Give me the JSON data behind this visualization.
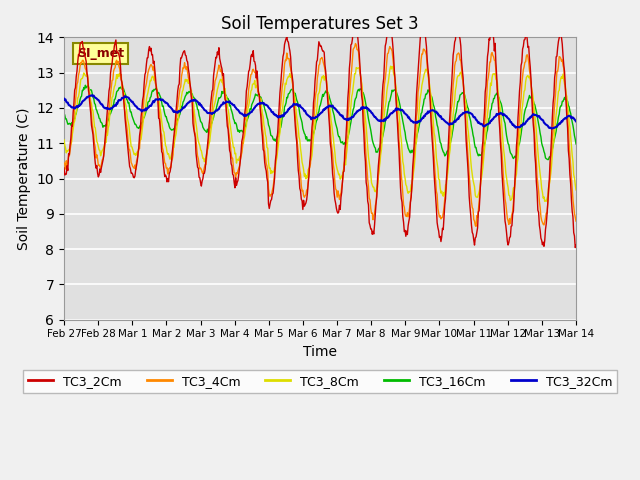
{
  "title": "Soil Temperatures Set 3",
  "xlabel": "Time",
  "ylabel": "Soil Temperature (C)",
  "ylim": [
    6.0,
    14.0
  ],
  "yticks": [
    6.0,
    7.0,
    8.0,
    9.0,
    10.0,
    11.0,
    12.0,
    13.0,
    14.0
  ],
  "x_tick_positions": [
    0,
    1,
    2,
    3,
    4,
    5,
    6,
    7,
    8,
    9,
    10,
    11,
    12,
    13,
    14,
    15
  ],
  "x_labels": [
    "Feb 27",
    "Feb 28",
    "Mar 1",
    "Mar 2",
    "Mar 3",
    "Mar 4",
    "Mar 5",
    "Mar 6",
    "Mar 7",
    "Mar 8",
    "Mar 9",
    "Mar 10",
    "Mar 11",
    "Mar 12",
    "Mar 13",
    "Mar 14"
  ],
  "series_colors": {
    "TC3_2Cm": "#cc0000",
    "TC3_4Cm": "#ff8800",
    "TC3_8Cm": "#dddd00",
    "TC3_16Cm": "#00bb00",
    "TC3_32Cm": "#0000cc"
  },
  "legend_label": "SI_met",
  "legend_bg": "#ffff99",
  "legend_border": "#888800",
  "plot_bg": "#e0e0e0",
  "fig_bg": "#f0f0f0",
  "grid_color": "#ffffff",
  "n_points": 672,
  "days": 15
}
